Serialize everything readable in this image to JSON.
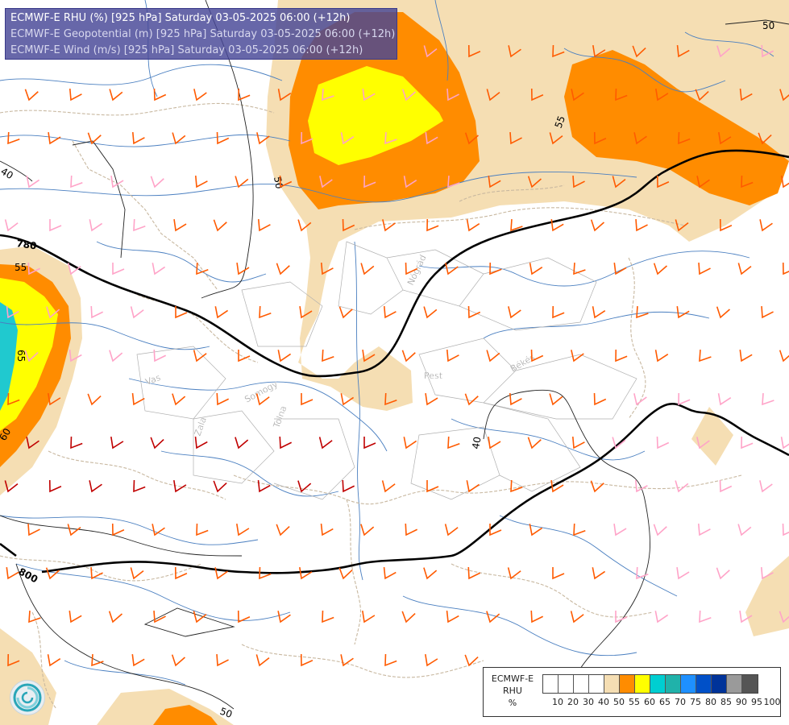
{
  "title": {
    "line1": "ECMWF-E RHU (%) [925 hPa] Saturday 03-05-2025 06:00 (+12h)",
    "line2": "ECMWF-E Geopotential (m) [925 hPa] Saturday 03-05-2025 06:00 (+12h)",
    "line3": "ECMWF-E Wind (m/s) [925 hPa] Saturday 03-05-2025 06:00 (+12h)"
  },
  "contour_labels": {
    "geo_780": "780",
    "geo_800": "800",
    "rh_50_top": "50",
    "rh_50_left": "50",
    "rh_55_top": "55",
    "rh_55_left": "55",
    "rh_65_left": "65",
    "rh_60_left": "60",
    "rh_40_left": "40",
    "rh_40_mid": "40",
    "rh_50_bottom": "50"
  },
  "place_labels": {
    "nograd": "Nógrád",
    "pest": "Pest",
    "bekes": "Békés",
    "vas": "Vas",
    "somogy": "Somogy",
    "zala": "Zala",
    "tolna": "Tolna"
  },
  "legend": {
    "label_line1": "ECMWF-E",
    "label_line2": "RHU",
    "label_line3": "%",
    "colors": [
      "#ffffff",
      "#ffffff",
      "#ffffff",
      "#ffffff",
      "#f5deb3",
      "#ff8c00",
      "#ffff00",
      "#00ced1",
      "#20b2aa",
      "#1e90ff",
      "#0050c8",
      "#003399",
      "#9a9a9a",
      "#555555"
    ],
    "ticks": [
      "10",
      "20",
      "30",
      "40",
      "50",
      "55",
      "60",
      "65",
      "70",
      "75",
      "80",
      "85",
      "90",
      "95",
      "100"
    ]
  },
  "colors": {
    "rh_50_55": "#f5deb3",
    "rh_55_60": "#ff8c00",
    "rh_60_65": "#ffff00",
    "rh_65_70": "#20c9cf",
    "geopotential": "#000000",
    "barb_strong": "#c00000",
    "barb_medium": "#ff5a00",
    "barb_light": "#ffa3c8"
  }
}
